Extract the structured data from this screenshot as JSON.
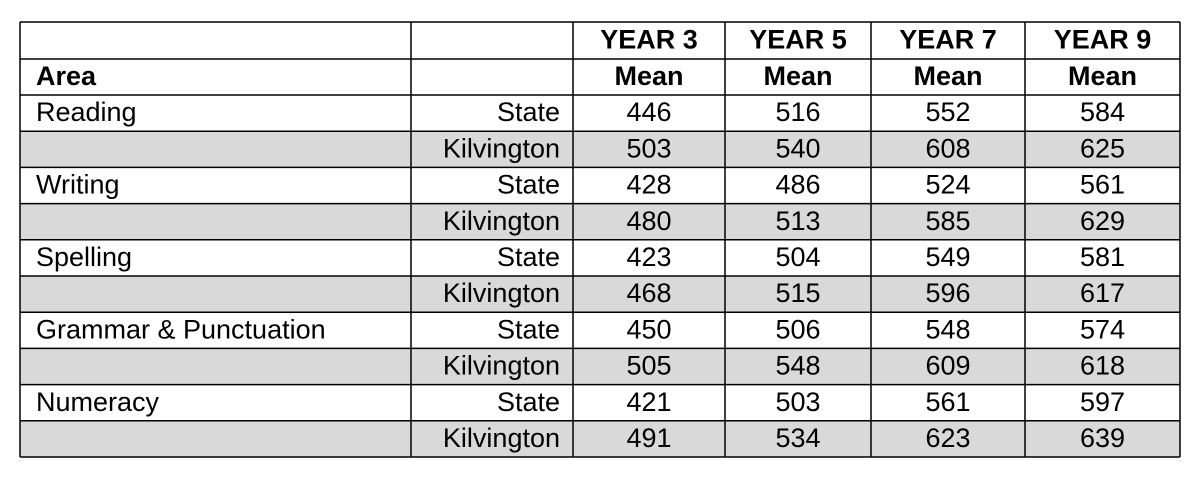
{
  "table": {
    "years": [
      "YEAR 3",
      "YEAR 5",
      "YEAR 7",
      "YEAR 9"
    ],
    "area_label": "Area",
    "stat_labels": [
      "Mean",
      "Mean",
      "Mean",
      "Mean"
    ],
    "rows": [
      {
        "area": "Reading",
        "group": "State",
        "values": [
          446,
          516,
          552,
          584
        ]
      },
      {
        "group": "Kilvington",
        "values": [
          503,
          540,
          608,
          625
        ]
      },
      {
        "area": "Writing",
        "group": "State",
        "values": [
          428,
          486,
          524,
          561
        ]
      },
      {
        "group": "Kilvington",
        "values": [
          480,
          513,
          585,
          629
        ]
      },
      {
        "area": "Spelling",
        "group": "State",
        "values": [
          423,
          504,
          549,
          581
        ]
      },
      {
        "group": "Kilvington",
        "values": [
          468,
          515,
          596,
          617
        ]
      },
      {
        "area": "Grammar & Punctuation",
        "group": "State",
        "values": [
          450,
          506,
          548,
          574
        ]
      },
      {
        "group": "Kilvington",
        "values": [
          505,
          548,
          609,
          618
        ]
      },
      {
        "area": "Numeracy",
        "group": "State",
        "values": [
          421,
          503,
          561,
          597
        ]
      },
      {
        "group": "Kilvington",
        "values": [
          491,
          534,
          623,
          639
        ]
      }
    ]
  }
}
